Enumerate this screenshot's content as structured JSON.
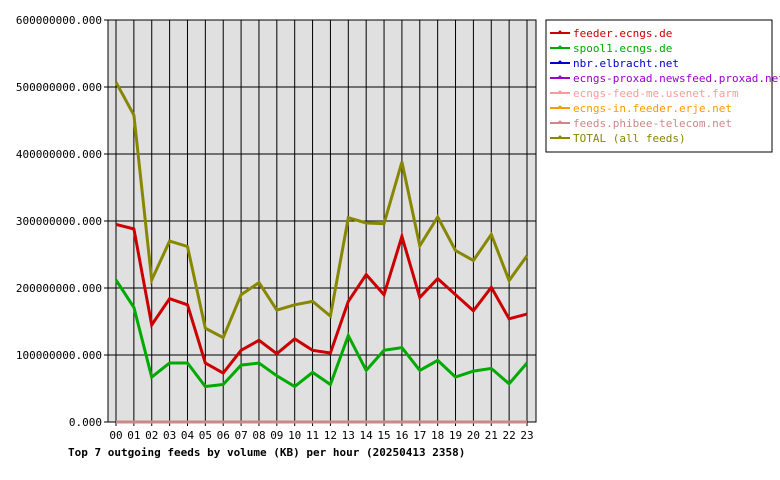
{
  "chart_data": {
    "type": "line",
    "title": "Top 7 outgoing feeds by volume (KB) per hour (20250413 2358)",
    "categories": [
      "00",
      "01",
      "02",
      "03",
      "04",
      "05",
      "06",
      "07",
      "08",
      "09",
      "10",
      "11",
      "12",
      "13",
      "14",
      "15",
      "16",
      "17",
      "18",
      "19",
      "20",
      "21",
      "22",
      "23"
    ],
    "ylim": [
      0,
      600000000
    ],
    "yticks": [
      0,
      100000000,
      200000000,
      300000000,
      400000000,
      500000000,
      600000000
    ],
    "ytick_labels": [
      "0.000",
      "100000000.000",
      "200000000.000",
      "300000000.000",
      "400000000.000",
      "500000000.000",
      "600000000.000"
    ],
    "grid": true,
    "legend_position": "right",
    "series": [
      {
        "name": "feeder.ecngs.de",
        "color": "#cc0000",
        "values": [
          295000000,
          288000000,
          145000000,
          184000000,
          175000000,
          88000000,
          73000000,
          107000000,
          122000000,
          102000000,
          124000000,
          107000000,
          103000000,
          180000000,
          220000000,
          190000000,
          277000000,
          186000000,
          214000000,
          190000000,
          166000000,
          201000000,
          154000000,
          161000000
        ]
      },
      {
        "name": "spool1.ecngs.de",
        "color": "#00aa00",
        "values": [
          212000000,
          171000000,
          67000000,
          88000000,
          88000000,
          53000000,
          56000000,
          85000000,
          88000000,
          69000000,
          53000000,
          74000000,
          56000000,
          129000000,
          77000000,
          107000000,
          111000000,
          77000000,
          92000000,
          67000000,
          76000000,
          80000000,
          57000000,
          88000000
        ]
      },
      {
        "name": "nbr.elbracht.net",
        "color": "#0000cc",
        "values": [
          0,
          0,
          0,
          0,
          0,
          0,
          0,
          0,
          0,
          0,
          0,
          0,
          0,
          0,
          0,
          0,
          0,
          0,
          0,
          0,
          0,
          0,
          0,
          0
        ]
      },
      {
        "name": "ecngs-proxad.newsfeed.proxad.net",
        "color": "#9900cc",
        "values": [
          0,
          0,
          0,
          0,
          0,
          0,
          0,
          0,
          0,
          0,
          0,
          0,
          0,
          0,
          0,
          0,
          0,
          0,
          0,
          0,
          0,
          0,
          0,
          0
        ]
      },
      {
        "name": "ecngs-feed-me.usenet.farm",
        "color": "#ff9999",
        "values": [
          0,
          0,
          0,
          0,
          0,
          0,
          0,
          0,
          0,
          0,
          0,
          0,
          0,
          0,
          0,
          0,
          0,
          0,
          0,
          0,
          0,
          0,
          0,
          0
        ]
      },
      {
        "name": "ecngs-in.feeder.erje.net",
        "color": "#ff9900",
        "values": [
          0,
          0,
          0,
          0,
          0,
          0,
          0,
          0,
          0,
          0,
          0,
          0,
          0,
          0,
          0,
          0,
          0,
          0,
          0,
          0,
          0,
          0,
          0,
          0
        ]
      },
      {
        "name": "feeds.phibee-telecom.net",
        "color": "#cc8888",
        "values": [
          0,
          0,
          0,
          0,
          0,
          0,
          0,
          0,
          0,
          0,
          0,
          0,
          0,
          0,
          0,
          0,
          0,
          0,
          0,
          0,
          0,
          0,
          0,
          0
        ]
      },
      {
        "name": "TOTAL (all feeds)",
        "color": "#888800",
        "values": [
          507000000,
          458000000,
          212000000,
          270000000,
          262000000,
          140000000,
          126000000,
          190000000,
          208000000,
          167000000,
          175000000,
          180000000,
          158000000,
          305000000,
          297000000,
          296000000,
          388000000,
          263000000,
          306000000,
          256000000,
          241000000,
          280000000,
          211000000,
          248000000
        ]
      }
    ]
  }
}
